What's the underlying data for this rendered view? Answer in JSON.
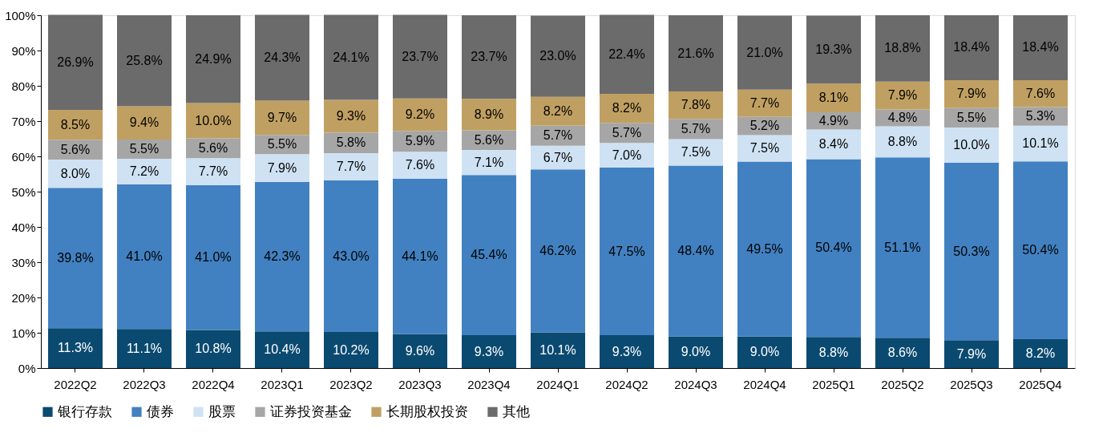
{
  "chart_data": {
    "type": "bar",
    "stacked": true,
    "categories": [
      "2022Q2",
      "2022Q3",
      "2022Q4",
      "2023Q1",
      "2023Q2",
      "2023Q3",
      "2023Q4",
      "2024Q1",
      "2024Q2",
      "2024Q3",
      "2024Q4",
      "2025Q1",
      "2025Q2",
      "2025Q3",
      "2025Q4"
    ],
    "series": [
      {
        "name": "银行存款",
        "color": "#0b4a70",
        "values": [
          11.3,
          11.1,
          10.8,
          10.4,
          10.2,
          9.6,
          9.3,
          10.1,
          9.3,
          9.0,
          9.0,
          8.8,
          8.6,
          7.9,
          8.2
        ],
        "value_labels": [
          "11.3%",
          "11.1%",
          "10.8%",
          "10.4%",
          "10.2%",
          "9.6%",
          "9.3%",
          "10.1%",
          "9.3%",
          "9.0%",
          "9.0%",
          "8.8%",
          "8.6%",
          "7.9%",
          "8.2%"
        ]
      },
      {
        "name": "债券",
        "color": "#4281c1",
        "values": [
          39.8,
          41.0,
          41.0,
          42.3,
          43.0,
          44.1,
          45.4,
          46.2,
          47.5,
          48.4,
          49.5,
          50.4,
          51.1,
          50.3,
          50.4
        ],
        "value_labels": [
          "39.8%",
          "41.0%",
          "41.0%",
          "42.3%",
          "43.0%",
          "44.1%",
          "45.4%",
          "46.2%",
          "47.5%",
          "48.4%",
          "49.5%",
          "50.4%",
          "51.1%",
          "50.3%",
          "50.4%"
        ]
      },
      {
        "name": "股票",
        "color": "#cfe2f3",
        "values": [
          8.0,
          7.2,
          7.7,
          7.9,
          7.7,
          7.6,
          7.1,
          6.7,
          7.0,
          7.5,
          7.5,
          8.4,
          8.8,
          10.0,
          10.1
        ],
        "value_labels": [
          "8.0%",
          "7.2%",
          "7.7%",
          "7.9%",
          "7.7%",
          "7.6%",
          "7.1%",
          "6.7%",
          "7.0%",
          "7.5%",
          "7.5%",
          "8.4%",
          "8.8%",
          "10.0%",
          "10.1%"
        ]
      },
      {
        "name": "证券投资基金",
        "color": "#a6a6a6",
        "values": [
          5.6,
          5.5,
          5.6,
          5.5,
          5.8,
          5.9,
          5.6,
          5.7,
          5.7,
          5.7,
          5.2,
          4.9,
          4.8,
          5.5,
          5.3
        ],
        "value_labels": [
          "5.6%",
          "5.5%",
          "5.6%",
          "5.5%",
          "5.8%",
          "5.9%",
          "5.6%",
          "5.7%",
          "5.7%",
          "5.7%",
          "5.2%",
          "4.9%",
          "4.8%",
          "5.5%",
          "5.3%"
        ]
      },
      {
        "name": "长期股权投资",
        "color": "#c0a062",
        "values": [
          8.5,
          9.4,
          10.0,
          9.7,
          9.3,
          9.2,
          8.9,
          8.2,
          8.2,
          7.8,
          7.7,
          8.1,
          7.9,
          7.9,
          7.6
        ],
        "value_labels": [
          "8.5%",
          "9.4%",
          "10.0%",
          "9.7%",
          "9.3%",
          "9.2%",
          "8.9%",
          "8.2%",
          "8.2%",
          "7.8%",
          "7.7%",
          "8.1%",
          "7.9%",
          "7.9%",
          "7.6%"
        ]
      },
      {
        "name": "其他",
        "color": "#6b6b6b",
        "values": [
          26.9,
          25.8,
          24.9,
          24.3,
          24.1,
          23.7,
          23.7,
          23.0,
          22.4,
          21.6,
          21.0,
          19.3,
          18.8,
          18.4,
          18.4
        ],
        "value_labels": [
          "26.9%",
          "25.8%",
          "24.9%",
          "24.3%",
          "24.1%",
          "23.7%",
          "23.7%",
          "23.0%",
          "22.4%",
          "21.6%",
          "21.0%",
          "19.3%",
          "18.8%",
          "18.4%",
          "18.4%"
        ]
      }
    ],
    "ylim": [
      0,
      100
    ],
    "yticks": [
      {
        "value": 0,
        "label": "0%"
      },
      {
        "value": 10,
        "label": "10%"
      },
      {
        "value": 20,
        "label": "20%"
      },
      {
        "value": 30,
        "label": "30%"
      },
      {
        "value": 40,
        "label": "40%"
      },
      {
        "value": 50,
        "label": "50%"
      },
      {
        "value": 60,
        "label": "60%"
      },
      {
        "value": 70,
        "label": "70%"
      },
      {
        "value": 80,
        "label": "80%"
      },
      {
        "value": 90,
        "label": "90%"
      },
      {
        "value": 100,
        "label": "100%"
      }
    ],
    "grid": false,
    "legend": "bottom"
  }
}
